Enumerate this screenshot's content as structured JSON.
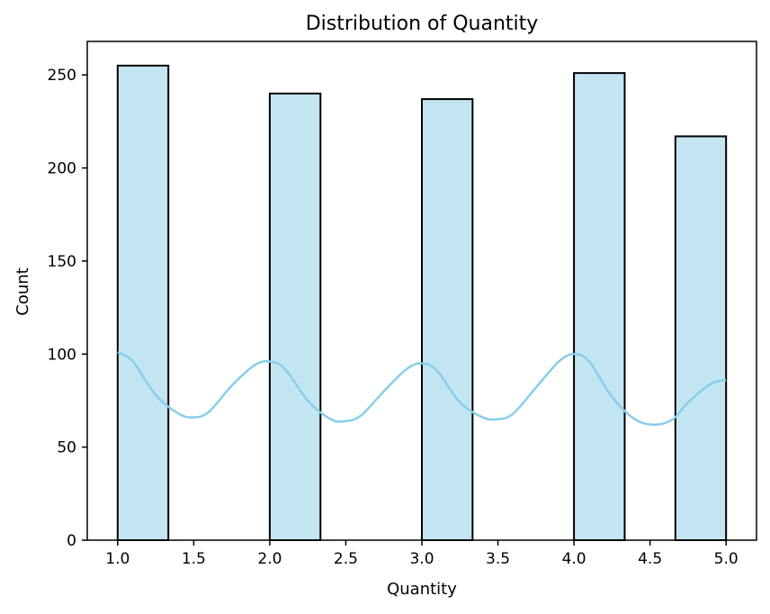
{
  "chart_data": {
    "type": "bar",
    "title": "Distribution of Quantity",
    "xlabel": "Quantity",
    "ylabel": "Count",
    "xlim": [
      0.8,
      5.2
    ],
    "ylim": [
      0,
      268
    ],
    "xticks": [
      1.0,
      1.5,
      2.0,
      2.5,
      3.0,
      3.5,
      4.0,
      4.5,
      5.0
    ],
    "xtick_labels": [
      "1.0",
      "1.5",
      "2.0",
      "2.5",
      "3.0",
      "3.5",
      "4.0",
      "4.5",
      "5.0"
    ],
    "yticks": [
      0,
      50,
      100,
      150,
      200,
      250
    ],
    "ytick_labels": [
      "0",
      "50",
      "100",
      "150",
      "200",
      "250"
    ],
    "bins": [
      {
        "x0": 1.0,
        "x1": 1.3333,
        "count": 255
      },
      {
        "x0": 1.3333,
        "x1": 1.6667,
        "count": 0
      },
      {
        "x0": 1.6667,
        "x1": 2.0,
        "count": 0
      },
      {
        "x0": 2.0,
        "x1": 2.3333,
        "count": 240
      },
      {
        "x0": 2.3333,
        "x1": 2.6667,
        "count": 0
      },
      {
        "x0": 2.6667,
        "x1": 3.0,
        "count": 0
      },
      {
        "x0": 3.0,
        "x1": 3.3333,
        "count": 237
      },
      {
        "x0": 3.3333,
        "x1": 3.6667,
        "count": 0
      },
      {
        "x0": 3.6667,
        "x1": 4.0,
        "count": 0
      },
      {
        "x0": 4.0,
        "x1": 4.3333,
        "count": 251
      },
      {
        "x0": 4.3333,
        "x1": 4.6667,
        "count": 0
      },
      {
        "x0": 4.6667,
        "x1": 5.0,
        "count": 217
      }
    ],
    "kde": {
      "x": [
        1.0,
        1.1,
        1.25,
        1.4,
        1.5,
        1.6,
        1.75,
        1.9,
        2.0,
        2.1,
        2.25,
        2.4,
        2.5,
        2.6,
        2.75,
        2.9,
        3.0,
        3.1,
        3.25,
        3.4,
        3.5,
        3.6,
        3.75,
        3.9,
        4.0,
        4.1,
        4.25,
        4.4,
        4.53,
        4.65,
        4.75,
        4.9,
        5.0
      ],
      "y": [
        101,
        96,
        78,
        68,
        66,
        69,
        83,
        94,
        96,
        92,
        75,
        65,
        64,
        67,
        80,
        92,
        95,
        91,
        74,
        66,
        65,
        68,
        82,
        96,
        100,
        96,
        77,
        65,
        62,
        65,
        74,
        84,
        86
      ]
    },
    "colors": {
      "bar_fill": "#c3e5f2",
      "bar_edge": "#000000",
      "kde_line": "#87ceeb",
      "axis": "#000000"
    },
    "grid": false,
    "legend": "none"
  }
}
